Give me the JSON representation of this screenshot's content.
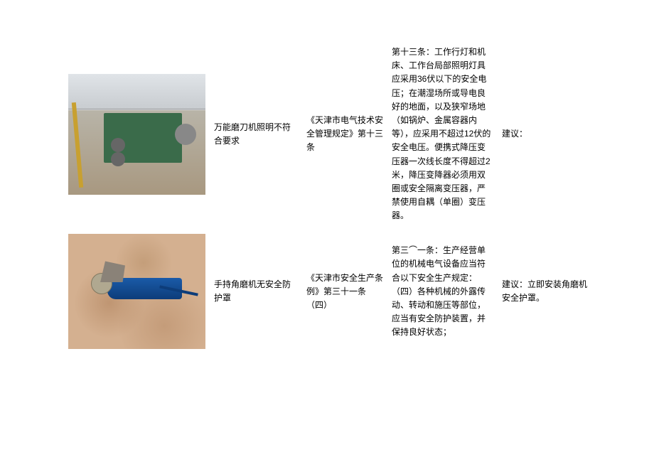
{
  "rows": [
    {
      "title": "万能磨刀机照明不符合要求",
      "reference": "《天津市电气技术安全管理规定》第十三条",
      "detail": "第十三条：工作行灯和机床、工作台局部照明灯具应采用36伏以下的安全电压；在潮湿场所或导电良好的地面，以及狭窄场地（如锅炉、金属容器内等），应采用不超过12伏的安全电压。便携式降压变压器一次线长度不得超过2米，降压变降器必须用双圈或安全隔离变压器，严禁使用自耦（单圈）变压器。",
      "suggest": "建议："
    },
    {
      "title": "手持角磨机无安全防护罩",
      "reference": "《天津市安全生产条例》第三十一条（四）",
      "detail": "第三⌒一条：生产经营单位的机械电气设备应当符合以下安全生产规定：（四）各种机械的外露传动、转动和施压等部位，应当有安全防护装置，并保持良好状态；",
      "suggest": "建议：立即安装角磨机安全护罩。"
    }
  ],
  "style": {
    "font_size": 12,
    "text_color": "#000000",
    "background": "#ffffff",
    "col_widths": {
      "img": 205,
      "title": 130,
      "ref": 120,
      "detail": 155,
      "suggest": 140
    },
    "photo1_colors": {
      "bg_top": "#d8dce0",
      "bg_bottom": "#a89880",
      "machine": "#3a6b4a",
      "metal": "#888888",
      "cable": "#c8a030"
    },
    "photo2_colors": {
      "bg": "#d4b090",
      "grinder": "#1a5ba8",
      "grinder_dark": "#0d3d7a",
      "disc": "#b0a890",
      "bracket": "#8a8278"
    }
  }
}
